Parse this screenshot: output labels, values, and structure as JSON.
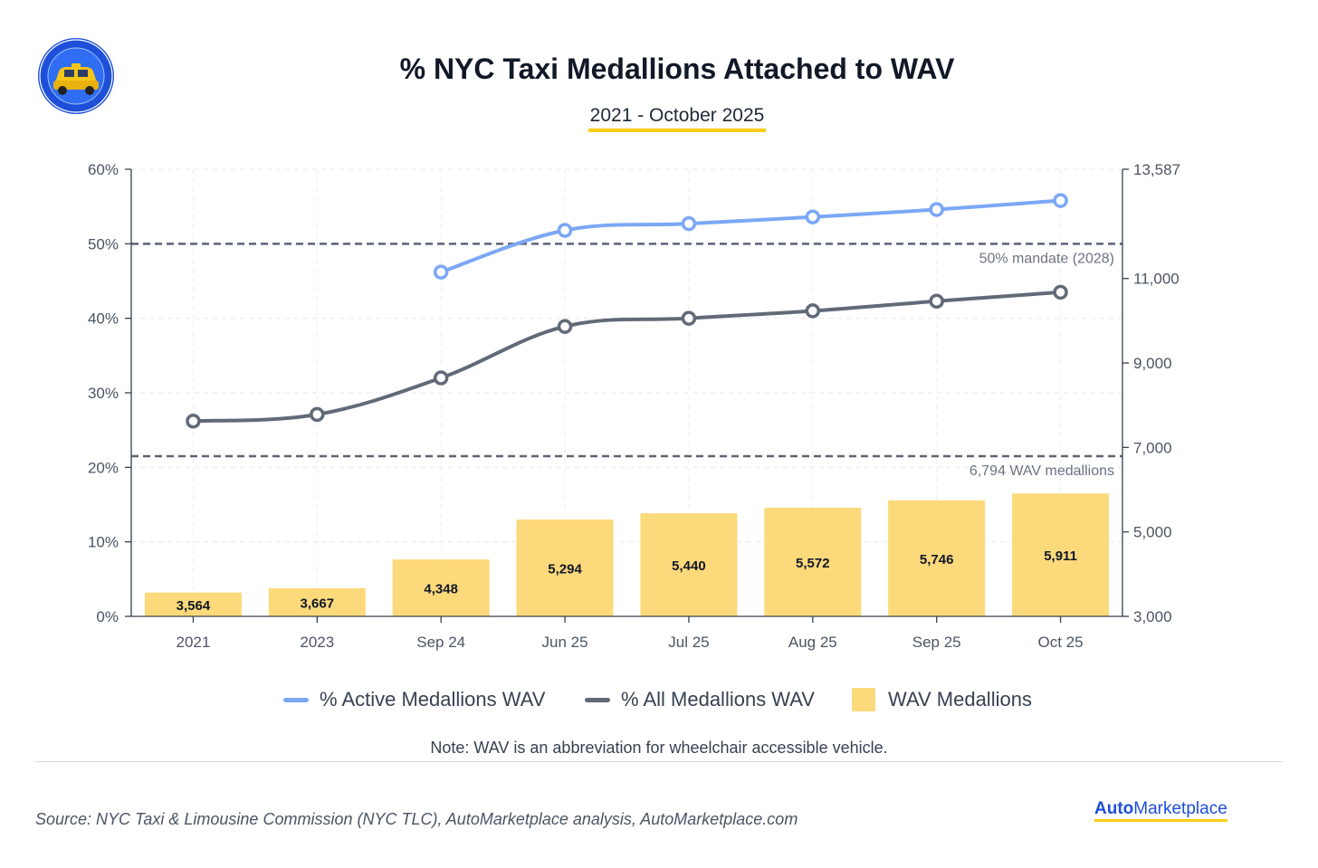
{
  "header": {
    "title": "% NYC Taxi Medallions Attached to WAV",
    "subtitle": "2021 - October 2025"
  },
  "logo": {
    "icon": "taxi-badge-icon",
    "text": "AutoMarketplace"
  },
  "chart_data": {
    "type": "bar+line",
    "categories": [
      "2021",
      "2023",
      "Sep 24",
      "Jun 25",
      "Jul 25",
      "Aug 25",
      "Sep 25",
      "Oct 25"
    ],
    "series": [
      {
        "name": "% Active Medallions WAV",
        "axis": "left",
        "kind": "line",
        "color": "#7ba7f5",
        "values": [
          null,
          null,
          46.2,
          51.8,
          52.7,
          53.6,
          54.6,
          55.8
        ]
      },
      {
        "name": "% All Medallions WAV",
        "axis": "left",
        "kind": "line",
        "color": "#626a78",
        "values": [
          26.2,
          27.1,
          32.0,
          38.9,
          40.0,
          41.0,
          42.3,
          43.5
        ]
      },
      {
        "name": "WAV Medallions",
        "axis": "right",
        "kind": "bar",
        "color": "#fcd97a",
        "values": [
          3564,
          3667,
          4348,
          5294,
          5440,
          5572,
          5746,
          5911
        ],
        "labels": [
          "3,564",
          "3,667",
          "4,348",
          "5,294",
          "5,440",
          "5,572",
          "5,746",
          "5,911"
        ]
      }
    ],
    "left_axis": {
      "min": 0,
      "max": 60,
      "ticks": [
        0,
        10,
        20,
        30,
        40,
        50,
        60
      ],
      "tick_labels": [
        "0%",
        "10%",
        "20%",
        "30%",
        "40%",
        "50%",
        "60%"
      ]
    },
    "right_axis": {
      "min": 3000,
      "max": 13587,
      "ticks": [
        3000,
        5000,
        7000,
        9000,
        11000,
        13587
      ],
      "tick_labels": [
        "3,000",
        "5,000",
        "7,000",
        "9,000",
        "11,000",
        "13,587"
      ]
    },
    "reference_lines": [
      {
        "axis": "left",
        "value": 50,
        "label": "50% mandate (2028)"
      },
      {
        "axis": "right",
        "value": 6794,
        "label": "6,794 WAV medallions"
      }
    ],
    "grid": true,
    "legend_position": "bottom"
  },
  "legend": {
    "items": [
      {
        "label": "% Active Medallions WAV",
        "color": "#7ba7f5"
      },
      {
        "label": "% All Medallions WAV",
        "color": "#626a78"
      },
      {
        "label": "WAV Medallions",
        "color": "#fcd97a"
      }
    ]
  },
  "note": "Note: WAV is an abbreviation for wheelchair accessible vehicle.",
  "footer": {
    "source": "Source: NYC Taxi & Limousine Commission (NYC TLC), AutoMarketplace analysis, AutoMarketplace.com",
    "brand_bold": "Auto",
    "brand_rest": "Marketplace"
  }
}
